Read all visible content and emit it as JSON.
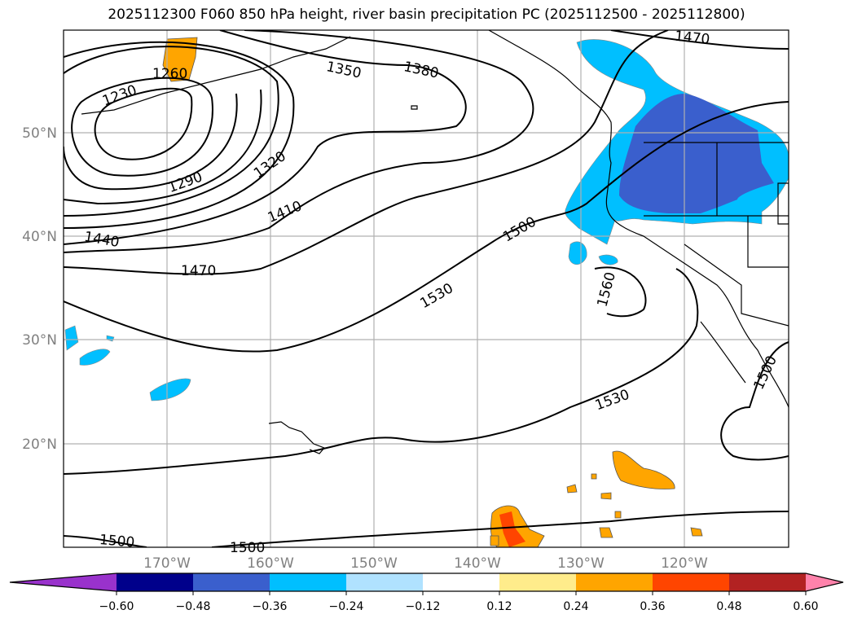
{
  "title": "2025112300 F060 850 hPa height, river basin precipitation PC (2025112500 - 2025112800)",
  "chart_data": {
    "type": "map-contour",
    "title": "2025112300 F060 850 hPa height, river basin precipitation PC (2025112500 - 2025112800)",
    "lon_range": [
      -180,
      -110
    ],
    "lat_range": [
      10,
      60
    ],
    "lon_ticks": [
      "170°W",
      "160°W",
      "150°W",
      "140°W",
      "130°W",
      "120°W"
    ],
    "lat_ticks": [
      "50°N",
      "40°N",
      "30°N",
      "20°N"
    ],
    "contour_labels": [
      "1230",
      "1260",
      "1290",
      "1320",
      "1350",
      "1380",
      "1410",
      "1440",
      "1470",
      "1470",
      "1500",
      "1530",
      "1560",
      "1500",
      "1530",
      "1500",
      "1500"
    ],
    "colorbar": {
      "ticks": [
        "−0.60",
        "−0.48",
        "−0.36",
        "−0.24",
        "−0.12",
        "0.12",
        "0.24",
        "0.36",
        "0.48",
        "0.60"
      ],
      "colors": [
        "#9932cc",
        "#00008b",
        "#3a5fcd",
        "#00bfff",
        "#b0e2ff",
        "#ffffff",
        "#ffec8b",
        "#ffa500",
        "#ff4500",
        "#b22222",
        "#ff82ab"
      ],
      "extend": "both"
    }
  }
}
